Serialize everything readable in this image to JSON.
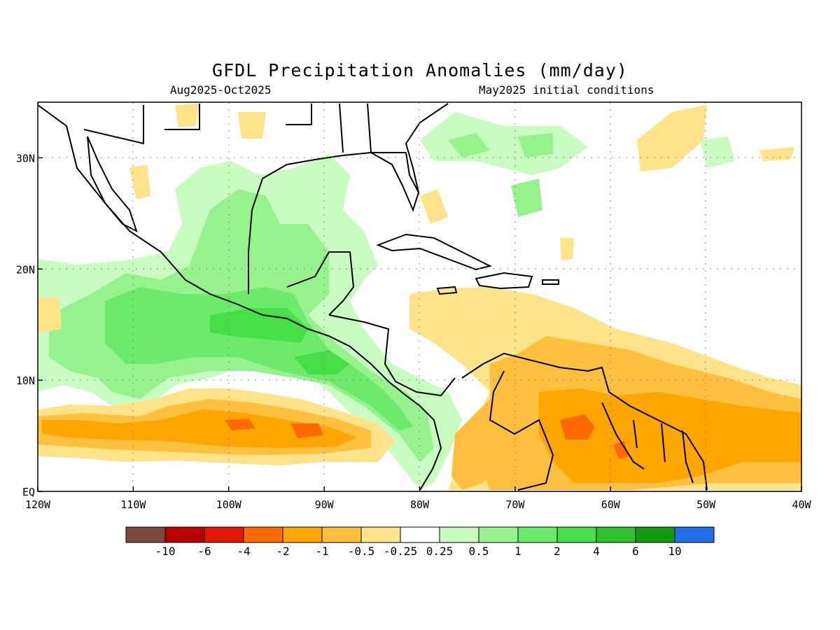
{
  "title": "GFDL Precipitation Anomalies (mm/day)",
  "subtitle_left": "Aug2025-Oct2025",
  "subtitle_right": "May2025 initial conditions",
  "map": {
    "lon_range": [
      -120,
      -40
    ],
    "lat_range": [
      0,
      35
    ],
    "x_ticks": [
      {
        "lon": -120,
        "label": "120W"
      },
      {
        "lon": -110,
        "label": "110W"
      },
      {
        "lon": -100,
        "label": "100W"
      },
      {
        "lon": -90,
        "label": "90W"
      },
      {
        "lon": -80,
        "label": "80W"
      },
      {
        "lon": -70,
        "label": "70W"
      },
      {
        "lon": -60,
        "label": "60W"
      },
      {
        "lon": -50,
        "label": "50W"
      },
      {
        "lon": -40,
        "label": "40W"
      }
    ],
    "y_ticks": [
      {
        "lat": 0,
        "label": "EQ"
      },
      {
        "lat": 10,
        "label": "10N"
      },
      {
        "lat": 20,
        "label": "20N"
      },
      {
        "lat": 30,
        "label": "30N"
      }
    ],
    "grid": "dotted"
  },
  "colorbar": {
    "colors": [
      "#7a4a3f",
      "#b80000",
      "#e01a00",
      "#ff6a00",
      "#ffa500",
      "#ffbf3f",
      "#ffe38a",
      "#ffffff",
      "#c8fcc0",
      "#96f28c",
      "#6cea6c",
      "#48de48",
      "#30c030",
      "#109a10",
      "#2070ea"
    ],
    "labels": [
      "-10",
      "-6",
      "-4",
      "-2",
      "-1",
      "-0.5",
      "-0.25",
      "0.25",
      "0.5",
      "1",
      "2",
      "4",
      "6",
      "10"
    ]
  }
}
